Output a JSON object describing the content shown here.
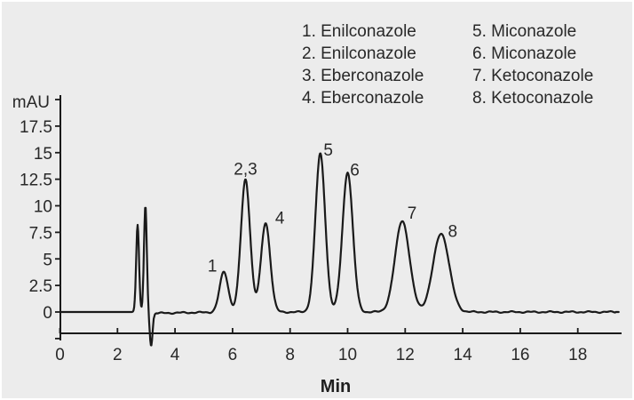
{
  "panel": {
    "background_color": "#ececec",
    "trace_color": "#1a1a1a",
    "axis_color": "#1a1a1a",
    "text_color": "#282828"
  },
  "legend": {
    "col1": [
      "1. Enilconazole",
      "2. Enilconazole",
      "3. Eberconazole",
      "4. Eberconazole"
    ],
    "col2": [
      "5. Miconazole",
      "6. Miconazole",
      "7. Ketoconazole",
      "8. Ketoconazole"
    ]
  },
  "chart_data": {
    "type": "line",
    "title": "",
    "xlabel": "Min",
    "ylabel": "mAU",
    "x_range": [
      0,
      19.5
    ],
    "y_range": [
      -2.7,
      20.3
    ],
    "x_ticks": [
      0,
      2,
      4,
      6,
      8,
      10,
      12,
      14,
      16,
      18
    ],
    "y_ticks_labeled": [
      0,
      2.5,
      5,
      7.5,
      10,
      12.5,
      15,
      17.5
    ],
    "y_ticks_unlabeled": [
      -2.5,
      20
    ],
    "grid": false,
    "legend_position": "top",
    "peaks": [
      {
        "label": "1",
        "name": "Enilconazole",
        "rt": 5.7,
        "height": 3.8,
        "sigma": 0.15,
        "label_dx": -13,
        "label_dy": 0
      },
      {
        "label": "2,3",
        "name": "Enilconazole, Eberconazole",
        "rt": 6.45,
        "height": 12.5,
        "sigma": 0.16,
        "label_dx": 0,
        "label_dy": -5
      },
      {
        "label": "4",
        "name": "Eberconazole",
        "rt": 7.15,
        "height": 8.4,
        "sigma": 0.16,
        "label_dx": 16,
        "label_dy": 1
      },
      {
        "label": "5",
        "name": "Miconazole",
        "rt": 9.05,
        "height": 14.9,
        "sigma": 0.17,
        "label_dx": 9,
        "label_dy": 2
      },
      {
        "label": "6",
        "name": "Miconazole",
        "rt": 10.0,
        "height": 13.2,
        "sigma": 0.18,
        "label_dx": 8,
        "label_dy": 4
      },
      {
        "label": "7",
        "name": "Ketoconazole",
        "rt": 11.9,
        "height": 8.6,
        "sigma": 0.25,
        "label_dx": 11,
        "label_dy": -2
      },
      {
        "label": "8",
        "name": "Ketoconazole",
        "rt": 13.25,
        "height": 7.4,
        "sigma": 0.28,
        "label_dx": 13,
        "label_dy": 4
      }
    ],
    "solvent_front": [
      {
        "rt": 2.7,
        "height": 8.2,
        "sigma": 0.05
      },
      {
        "rt": 2.97,
        "height": 10.0,
        "sigma": 0.05
      },
      {
        "rt": 3.17,
        "height": -3.2,
        "sigma": 0.05
      }
    ]
  }
}
